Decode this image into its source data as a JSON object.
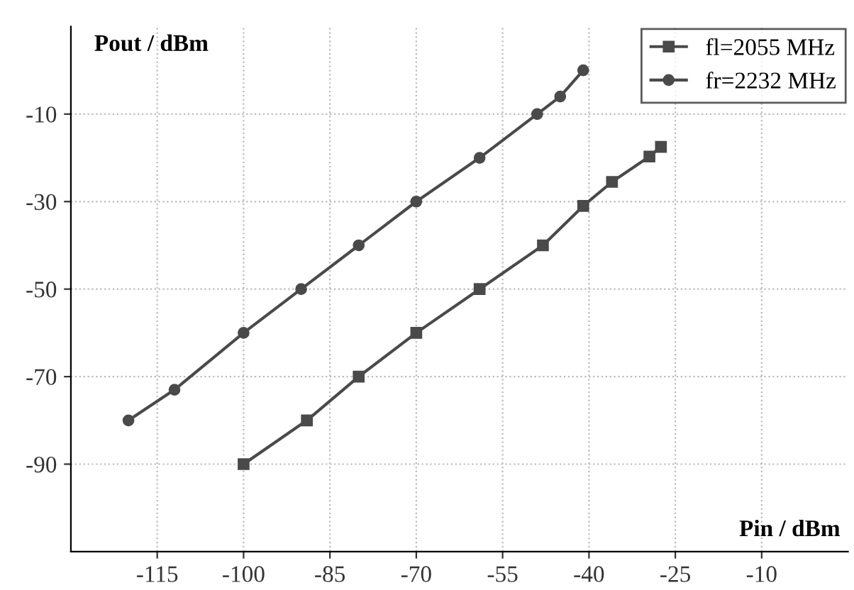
{
  "chart_data": {
    "type": "line",
    "xlabel": "Pin / dBm",
    "ylabel": "Pout / dBm",
    "series": [
      {
        "name": "fl=2055 MHz",
        "color": "#4a4a4a",
        "marker": "square",
        "x": [
          -100,
          -89,
          -80,
          -70,
          -59,
          -48,
          -41,
          -36,
          -29.5,
          -27.5
        ],
        "values": [
          -90,
          -80,
          -70,
          -60,
          -50,
          -40,
          -31,
          -25.5,
          -19.7,
          -17.5
        ]
      },
      {
        "name": "fr=2232 MHz",
        "color": "#4a4a4a",
        "marker": "circle",
        "x": [
          -120,
          -112,
          -100,
          -90,
          -80,
          -70,
          -59,
          -49,
          -45,
          -41
        ],
        "values": [
          -80,
          -73,
          -60,
          -50,
          -40,
          -30,
          -20,
          -10,
          -6,
          0
        ]
      }
    ],
    "xlim": [
      -130,
      5
    ],
    "ylim": [
      -110,
      10
    ],
    "xticks": [
      -115,
      -100,
      -85,
      -70,
      -55,
      -40,
      -25,
      -10
    ],
    "yticks": [
      -90,
      -70,
      -50,
      -30,
      -10
    ],
    "grid": true,
    "legend": "top right",
    "line_style": "solid"
  }
}
